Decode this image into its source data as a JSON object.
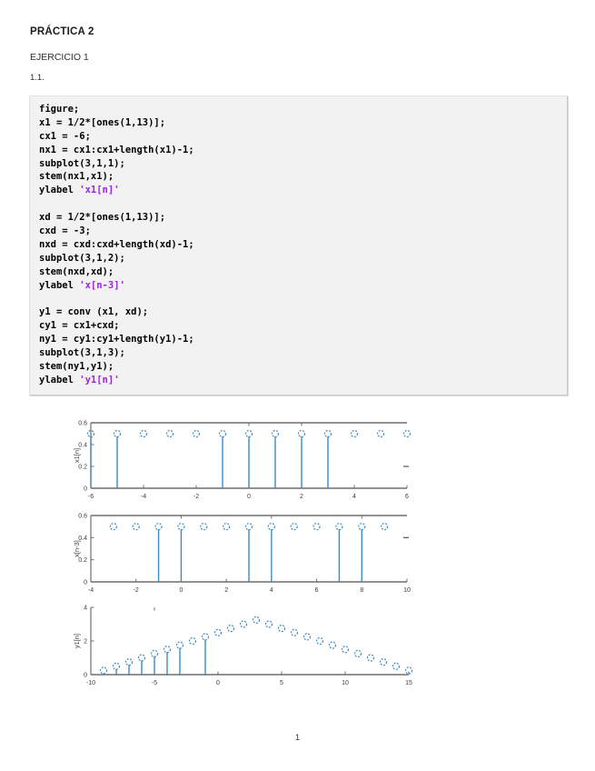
{
  "page": {
    "title": "PRÁCTICA 2",
    "section": "EJERCICIO 1",
    "subsection": "1.1.",
    "page_number": "1"
  },
  "colors": {
    "stem_blue": "#3b8bc9",
    "string_purple": "#a020f0",
    "code_background": "#f2f2f2",
    "axis_gray": "#6f6f6f",
    "tick_label_gray": "#3c3c3c"
  },
  "code_block": {
    "lines": [
      {
        "code": "figure;"
      },
      {
        "code": "x1 = 1/2*[ones(1,13)];"
      },
      {
        "code": "cx1 = -6;"
      },
      {
        "code": "nx1 = cx1:cx1+length(x1)-1;"
      },
      {
        "code": "subplot(3,1,1);"
      },
      {
        "code": "stem(nx1,x1);"
      },
      {
        "code": "ylabel ",
        "string": "'x1[n]'"
      },
      {
        "code": ""
      },
      {
        "code": "xd = 1/2*[ones(1,13)];"
      },
      {
        "code": "cxd = -3;"
      },
      {
        "code": "nxd = cxd:cxd+length(xd)-1;"
      },
      {
        "code": "subplot(3,1,2);"
      },
      {
        "code": "stem(nxd,xd);"
      },
      {
        "code": "ylabel ",
        "string": "'x[n-3]'"
      },
      {
        "code": ""
      },
      {
        "code": "y1 = conv (x1, xd);"
      },
      {
        "code": "cy1 = cx1+cxd;"
      },
      {
        "code": "ny1 = cy1:cy1+length(y1)-1;"
      },
      {
        "code": "subplot(3,1,3);"
      },
      {
        "code": "stem(ny1,y1);"
      },
      {
        "code": "ylabel ",
        "string": "'y1[n]'"
      }
    ]
  },
  "chart_data": [
    {
      "type": "stem",
      "ylabel": "x1[n]",
      "x": [
        -6,
        -5,
        -4,
        -3,
        -2,
        -1,
        0,
        1,
        2,
        3,
        4,
        5,
        6
      ],
      "y": [
        0.5,
        0.5,
        0.5,
        0.5,
        0.5,
        0.5,
        0.5,
        0.5,
        0.5,
        0.5,
        0.5,
        0.5,
        0.5
      ],
      "xlim": [
        -6,
        6
      ],
      "ylim": [
        0,
        0.6
      ],
      "xticks": [
        -6,
        -4,
        -2,
        0,
        2,
        4,
        6
      ],
      "xtick_labels": [
        "-6",
        "-4",
        "-2",
        "0",
        "2",
        "4",
        "6"
      ],
      "yticks": [
        0,
        0.2,
        0.4,
        0.6
      ],
      "ytick_labels": [
        "0",
        "0.2",
        "0.4",
        "0.6"
      ],
      "stems_drawn": [
        -6,
        -5,
        -1,
        0,
        1,
        2,
        3
      ],
      "top_ticks": [
        0,
        2
      ],
      "right_tick_value": 0.2,
      "box_top": true,
      "marker": "open-circle-dashed",
      "grid": false
    },
    {
      "type": "stem",
      "ylabel": "x[n-3]",
      "x": [
        -3,
        -2,
        -1,
        0,
        1,
        2,
        3,
        4,
        5,
        6,
        7,
        8,
        9
      ],
      "y": [
        0.5,
        0.5,
        0.5,
        0.5,
        0.5,
        0.5,
        0.5,
        0.5,
        0.5,
        0.5,
        0.5,
        0.5,
        0.5
      ],
      "xlim": [
        -4,
        10
      ],
      "ylim": [
        0,
        0.6
      ],
      "xticks": [
        -4,
        -2,
        0,
        2,
        4,
        6,
        8,
        10
      ],
      "xtick_labels": [
        "-4",
        "-2",
        "0",
        "2",
        "4",
        "6",
        "8",
        "10"
      ],
      "yticks": [
        0,
        0.2,
        0.4,
        0.6
      ],
      "ytick_labels": [
        "0",
        "0.2",
        "0.4",
        "0.6"
      ],
      "stems_drawn": [
        -1,
        0,
        3,
        4,
        7,
        8
      ],
      "top_ticks": [
        0,
        4,
        8
      ],
      "right_tick_value": 0.4,
      "box_top": true,
      "marker": "open-circle-dashed",
      "grid": false
    },
    {
      "type": "stem",
      "ylabel": "y1[n]",
      "x": [
        -9,
        -8,
        -7,
        -6,
        -5,
        -4,
        -3,
        -2,
        -1,
        0,
        1,
        2,
        3,
        4,
        5,
        6,
        7,
        8,
        9,
        10,
        11,
        12,
        13,
        14,
        15
      ],
      "y": [
        0.25,
        0.5,
        0.75,
        1.0,
        1.25,
        1.5,
        1.75,
        2.0,
        2.25,
        2.5,
        2.75,
        3.0,
        3.25,
        3.0,
        2.75,
        2.5,
        2.25,
        2.0,
        1.75,
        1.5,
        1.25,
        1.0,
        0.75,
        0.5,
        0.25
      ],
      "xlim": [
        -10,
        15
      ],
      "ylim": [
        0,
        4
      ],
      "xticks": [
        -10,
        -5,
        0,
        5,
        10,
        15
      ],
      "xtick_labels": [
        "-10",
        "-5",
        "0",
        "5",
        "10",
        "15"
      ],
      "yticks": [
        0,
        2,
        4
      ],
      "ytick_labels": [
        "0",
        "2",
        "4"
      ],
      "stems_drawn": [
        -9,
        -8,
        -7,
        -6,
        -5,
        -4,
        -3,
        -1
      ],
      "top_ticks": [
        -5
      ],
      "right_tick_value": null,
      "box_top": false,
      "marker": "open-circle-dashed",
      "grid": false
    }
  ]
}
